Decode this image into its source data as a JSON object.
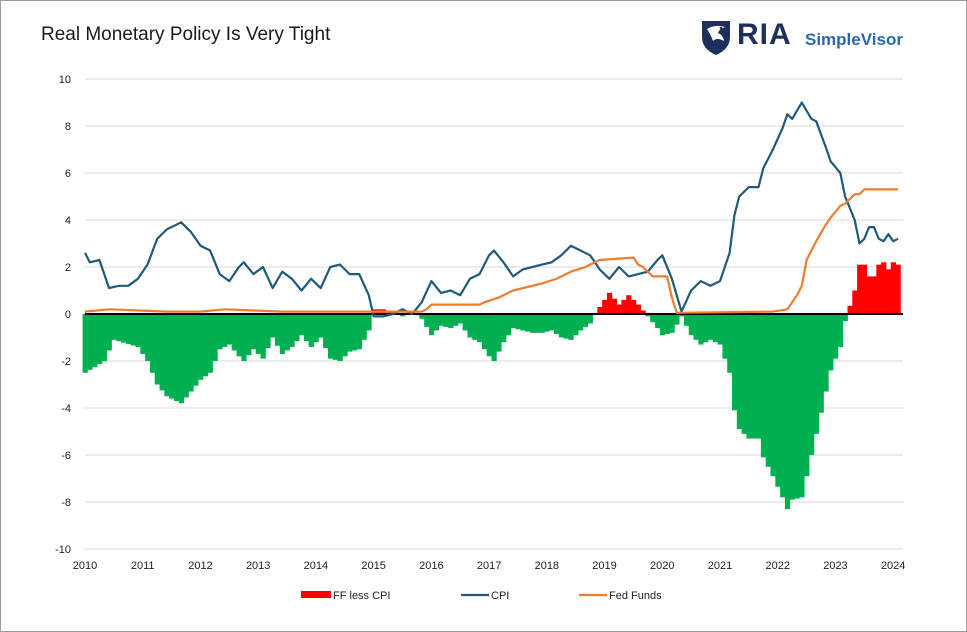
{
  "title": "Real Monetary Policy Is Very Tight",
  "logo": {
    "brand": "RIA",
    "product": "SimpleVisor"
  },
  "colors": {
    "positive_bar": "#ff0000",
    "negative_bar": "#00b050",
    "cpi": "#1f5a78",
    "fed_funds": "#ed7d31",
    "zero_line": "#000000",
    "grid": "#d9d9d9"
  },
  "chart_data": {
    "type": "bar+line",
    "title": "Real Monetary Policy Is Very Tight",
    "x_ticks": [
      "2010",
      "2011",
      "2012",
      "2013",
      "2014",
      "2015",
      "2016",
      "2017",
      "2018",
      "2019",
      "2020",
      "2021",
      "2022",
      "2023",
      "2024"
    ],
    "x_range": [
      "2010-01",
      "2024-03"
    ],
    "y_ticks": [
      10,
      8,
      6,
      4,
      2,
      0,
      -2,
      -4,
      -6,
      -8,
      -10
    ],
    "ylim": [
      -10,
      10
    ],
    "grid": "horizontal",
    "legend_placement": "bottom",
    "legend": [
      "FF less CPI",
      "CPI",
      "Fed Funds"
    ],
    "series": [
      {
        "name": "CPI",
        "type": "line",
        "points": [
          [
            "2010-01",
            2.6
          ],
          [
            "2010-02",
            2.2
          ],
          [
            "2010-04",
            2.3
          ],
          [
            "2010-06",
            1.1
          ],
          [
            "2010-08",
            1.2
          ],
          [
            "2010-10",
            1.2
          ],
          [
            "2010-12",
            1.5
          ],
          [
            "2011-02",
            2.1
          ],
          [
            "2011-04",
            3.2
          ],
          [
            "2011-06",
            3.6
          ],
          [
            "2011-09",
            3.9
          ],
          [
            "2011-11",
            3.5
          ],
          [
            "2012-01",
            2.9
          ],
          [
            "2012-03",
            2.7
          ],
          [
            "2012-05",
            1.7
          ],
          [
            "2012-07",
            1.4
          ],
          [
            "2012-09",
            2.0
          ],
          [
            "2012-10",
            2.2
          ],
          [
            "2012-12",
            1.7
          ],
          [
            "2013-02",
            2.0
          ],
          [
            "2013-04",
            1.1
          ],
          [
            "2013-06",
            1.8
          ],
          [
            "2013-08",
            1.5
          ],
          [
            "2013-10",
            1.0
          ],
          [
            "2013-12",
            1.5
          ],
          [
            "2014-02",
            1.1
          ],
          [
            "2014-04",
            2.0
          ],
          [
            "2014-06",
            2.1
          ],
          [
            "2014-08",
            1.7
          ],
          [
            "2014-10",
            1.7
          ],
          [
            "2014-12",
            0.8
          ],
          [
            "2015-01",
            -0.1
          ],
          [
            "2015-03",
            -0.1
          ],
          [
            "2015-05",
            0.0
          ],
          [
            "2015-07",
            0.2
          ],
          [
            "2015-09",
            0.0
          ],
          [
            "2015-11",
            0.5
          ],
          [
            "2016-01",
            1.4
          ],
          [
            "2016-03",
            0.9
          ],
          [
            "2016-05",
            1.0
          ],
          [
            "2016-07",
            0.8
          ],
          [
            "2016-09",
            1.5
          ],
          [
            "2016-11",
            1.7
          ],
          [
            "2017-01",
            2.5
          ],
          [
            "2017-02",
            2.7
          ],
          [
            "2017-04",
            2.2
          ],
          [
            "2017-06",
            1.6
          ],
          [
            "2017-08",
            1.9
          ],
          [
            "2017-10",
            2.0
          ],
          [
            "2017-12",
            2.1
          ],
          [
            "2018-02",
            2.2
          ],
          [
            "2018-04",
            2.5
          ],
          [
            "2018-06",
            2.9
          ],
          [
            "2018-08",
            2.7
          ],
          [
            "2018-10",
            2.5
          ],
          [
            "2018-12",
            1.9
          ],
          [
            "2019-02",
            1.5
          ],
          [
            "2019-04",
            2.0
          ],
          [
            "2019-06",
            1.6
          ],
          [
            "2019-08",
            1.7
          ],
          [
            "2019-10",
            1.8
          ],
          [
            "2019-12",
            2.3
          ],
          [
            "2020-01",
            2.5
          ],
          [
            "2020-03",
            1.5
          ],
          [
            "2020-05",
            0.1
          ],
          [
            "2020-07",
            1.0
          ],
          [
            "2020-09",
            1.4
          ],
          [
            "2020-11",
            1.2
          ],
          [
            "2021-01",
            1.4
          ],
          [
            "2021-03",
            2.6
          ],
          [
            "2021-04",
            4.2
          ],
          [
            "2021-05",
            5.0
          ],
          [
            "2021-07",
            5.4
          ],
          [
            "2021-09",
            5.4
          ],
          [
            "2021-10",
            6.2
          ],
          [
            "2021-12",
            7.0
          ],
          [
            "2022-02",
            7.9
          ],
          [
            "2022-03",
            8.5
          ],
          [
            "2022-04",
            8.3
          ],
          [
            "2022-06",
            9.0
          ],
          [
            "2022-08",
            8.3
          ],
          [
            "2022-09",
            8.2
          ],
          [
            "2022-11",
            7.1
          ],
          [
            "2022-12",
            6.5
          ],
          [
            "2023-02",
            6.0
          ],
          [
            "2023-03",
            5.0
          ],
          [
            "2023-05",
            4.0
          ],
          [
            "2023-06",
            3.0
          ],
          [
            "2023-07",
            3.2
          ],
          [
            "2023-08",
            3.7
          ],
          [
            "2023-09",
            3.7
          ],
          [
            "2023-10",
            3.2
          ],
          [
            "2023-11",
            3.1
          ],
          [
            "2023-12",
            3.4
          ],
          [
            "2024-01",
            3.1
          ],
          [
            "2024-02",
            3.2
          ]
        ]
      },
      {
        "name": "Fed Funds",
        "type": "line",
        "points": [
          [
            "2010-01",
            0.1
          ],
          [
            "2010-06",
            0.2
          ],
          [
            "2011-06",
            0.1
          ],
          [
            "2012-01",
            0.1
          ],
          [
            "2012-06",
            0.2
          ],
          [
            "2013-06",
            0.1
          ],
          [
            "2014-01",
            0.1
          ],
          [
            "2014-12",
            0.1
          ],
          [
            "2015-11",
            0.1
          ],
          [
            "2015-12",
            0.2
          ],
          [
            "2016-01",
            0.4
          ],
          [
            "2016-11",
            0.4
          ],
          [
            "2016-12",
            0.5
          ],
          [
            "2017-03",
            0.7
          ],
          [
            "2017-06",
            1.0
          ],
          [
            "2017-12",
            1.3
          ],
          [
            "2018-03",
            1.5
          ],
          [
            "2018-06",
            1.8
          ],
          [
            "2018-09",
            2.0
          ],
          [
            "2018-12",
            2.3
          ],
          [
            "2019-07",
            2.4
          ],
          [
            "2019-08",
            2.1
          ],
          [
            "2019-09",
            2.0
          ],
          [
            "2019-11",
            1.6
          ],
          [
            "2020-02",
            1.6
          ],
          [
            "2020-03",
            0.7
          ],
          [
            "2020-04",
            0.05
          ],
          [
            "2021-12",
            0.1
          ],
          [
            "2022-03",
            0.2
          ],
          [
            "2022-05",
            0.8
          ],
          [
            "2022-06",
            1.2
          ],
          [
            "2022-07",
            2.3
          ],
          [
            "2022-09",
            3.1
          ],
          [
            "2022-11",
            3.8
          ],
          [
            "2022-12",
            4.1
          ],
          [
            "2023-02",
            4.6
          ],
          [
            "2023-03",
            4.7
          ],
          [
            "2023-05",
            5.1
          ],
          [
            "2023-06",
            5.1
          ],
          [
            "2023-07",
            5.3
          ],
          [
            "2024-02",
            5.3
          ]
        ]
      },
      {
        "name": "FF less CPI",
        "type": "bar",
        "points": [
          [
            "2010-01",
            -2.5
          ],
          [
            "2010-05",
            -2.0
          ],
          [
            "2010-07",
            -1.1
          ],
          [
            "2010-12",
            -1.4
          ],
          [
            "2011-02",
            -2.0
          ],
          [
            "2011-04",
            -3.0
          ],
          [
            "2011-06",
            -3.5
          ],
          [
            "2011-09",
            -3.8
          ],
          [
            "2011-11",
            -3.3
          ],
          [
            "2012-01",
            -2.8
          ],
          [
            "2012-03",
            -2.5
          ],
          [
            "2012-05",
            -1.5
          ],
          [
            "2012-07",
            -1.3
          ],
          [
            "2012-09",
            -1.8
          ],
          [
            "2012-10",
            -2.0
          ],
          [
            "2012-12",
            -1.5
          ],
          [
            "2013-02",
            -1.9
          ],
          [
            "2013-04",
            -1.0
          ],
          [
            "2013-06",
            -1.7
          ],
          [
            "2013-08",
            -1.4
          ],
          [
            "2013-10",
            -0.9
          ],
          [
            "2013-12",
            -1.4
          ],
          [
            "2014-02",
            -1.0
          ],
          [
            "2014-04",
            -1.9
          ],
          [
            "2014-06",
            -2.0
          ],
          [
            "2014-08",
            -1.6
          ],
          [
            "2014-10",
            -1.5
          ],
          [
            "2014-12",
            -0.7
          ],
          [
            "2015-01",
            0.2
          ],
          [
            "2015-03",
            0.2
          ],
          [
            "2015-05",
            0.1
          ],
          [
            "2015-07",
            -0.1
          ],
          [
            "2015-09",
            0.1
          ],
          [
            "2015-11",
            -0.2
          ],
          [
            "2016-01",
            -0.9
          ],
          [
            "2016-03",
            -0.5
          ],
          [
            "2016-05",
            -0.6
          ],
          [
            "2016-07",
            -0.4
          ],
          [
            "2016-09",
            -1.0
          ],
          [
            "2016-11",
            -1.2
          ],
          [
            "2017-01",
            -1.8
          ],
          [
            "2017-02",
            -2.0
          ],
          [
            "2017-04",
            -1.2
          ],
          [
            "2017-06",
            -0.6
          ],
          [
            "2017-08",
            -0.7
          ],
          [
            "2017-10",
            -0.8
          ],
          [
            "2017-12",
            -0.8
          ],
          [
            "2018-02",
            -0.7
          ],
          [
            "2018-04",
            -1.0
          ],
          [
            "2018-06",
            -1.1
          ],
          [
            "2018-08",
            -0.7
          ],
          [
            "2018-10",
            -0.4
          ],
          [
            "2018-12",
            0.3
          ],
          [
            "2019-02",
            0.9
          ],
          [
            "2019-04",
            0.4
          ],
          [
            "2019-06",
            0.8
          ],
          [
            "2019-08",
            0.4
          ],
          [
            "2019-10",
            -0.1
          ],
          [
            "2019-12",
            -0.6
          ],
          [
            "2020-01",
            -0.9
          ],
          [
            "2020-03",
            -0.8
          ],
          [
            "2020-05",
            -0.1
          ],
          [
            "2020-07",
            -0.9
          ],
          [
            "2020-09",
            -1.3
          ],
          [
            "2020-11",
            -1.1
          ],
          [
            "2021-01",
            -1.3
          ],
          [
            "2021-03",
            -2.5
          ],
          [
            "2021-04",
            -4.1
          ],
          [
            "2021-05",
            -4.9
          ],
          [
            "2021-07",
            -5.3
          ],
          [
            "2021-09",
            -5.3
          ],
          [
            "2021-10",
            -6.1
          ],
          [
            "2021-12",
            -6.9
          ],
          [
            "2022-02",
            -7.8
          ],
          [
            "2022-03",
            -8.3
          ],
          [
            "2022-04",
            -7.9
          ],
          [
            "2022-06",
            -7.8
          ],
          [
            "2022-08",
            -6.0
          ],
          [
            "2022-09",
            -5.1
          ],
          [
            "2022-11",
            -3.3
          ],
          [
            "2022-12",
            -2.4
          ],
          [
            "2023-02",
            -1.4
          ],
          [
            "2023-03",
            -0.3
          ],
          [
            "2023-05",
            1.0
          ],
          [
            "2023-06",
            2.1
          ],
          [
            "2023-07",
            2.1
          ],
          [
            "2023-08",
            1.6
          ],
          [
            "2023-09",
            1.6
          ],
          [
            "2023-10",
            2.1
          ],
          [
            "2023-11",
            2.2
          ],
          [
            "2023-12",
            1.9
          ],
          [
            "2024-01",
            2.2
          ],
          [
            "2024-02",
            2.1
          ]
        ]
      }
    ]
  }
}
